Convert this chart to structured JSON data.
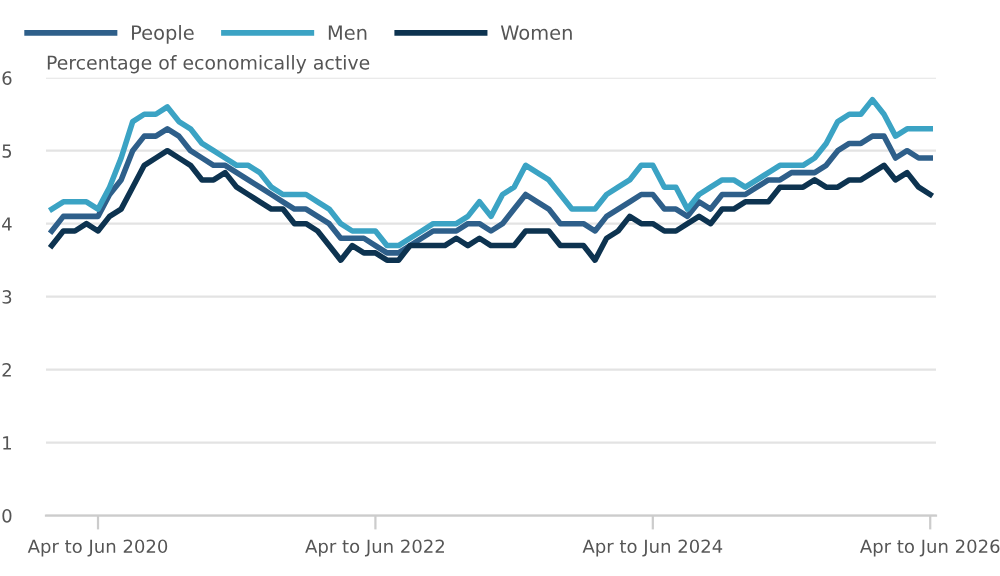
{
  "chart_data": {
    "type": "line",
    "ylabel": "Percentage of economically active",
    "categories": [
      null,
      null,
      null,
      null,
      "Apr to Jun 2020",
      null,
      null,
      null,
      null,
      null,
      null,
      null,
      null,
      null,
      null,
      null,
      null,
      null,
      null,
      null,
      null,
      null,
      null,
      null,
      null,
      null,
      null,
      null,
      "Apr to Jun 2022",
      null,
      null,
      null,
      null,
      null,
      null,
      null,
      null,
      null,
      null,
      null,
      null,
      null,
      null,
      null,
      null,
      null,
      null,
      null,
      null,
      null,
      null,
      null,
      "Apr to Jun 2024",
      null,
      null,
      null,
      null,
      null,
      null,
      null,
      null,
      null,
      null,
      null,
      null,
      null,
      null,
      null,
      null,
      null,
      null,
      null,
      null,
      null,
      null,
      null,
      "Apr to Jun 2026"
    ],
    "series": [
      {
        "name": "People",
        "color": "#2e5f8a",
        "values": [
          3.9,
          4.1,
          4.1,
          4.1,
          4.1,
          4.4,
          4.6,
          5.0,
          5.2,
          5.2,
          5.3,
          5.2,
          5.0,
          4.9,
          4.8,
          4.8,
          4.7,
          4.6,
          4.5,
          4.4,
          4.3,
          4.2,
          4.2,
          4.1,
          4.0,
          3.8,
          3.8,
          3.8,
          3.7,
          3.6,
          3.6,
          3.7,
          3.8,
          3.9,
          3.9,
          3.9,
          4.0,
          4.0,
          3.9,
          4.0,
          4.2,
          4.4,
          4.3,
          4.2,
          4.0,
          4.0,
          4.0,
          3.9,
          4.1,
          4.2,
          4.3,
          4.4,
          4.4,
          4.2,
          4.2,
          4.1,
          4.3,
          4.2,
          4.4,
          4.4,
          4.4,
          4.5,
          4.6,
          4.6,
          4.7,
          4.7,
          4.7,
          4.8,
          5.0,
          5.1,
          5.1,
          5.2,
          5.2,
          4.9,
          5.0,
          4.9,
          4.9
        ]
      },
      {
        "name": "Men",
        "color": "#3ba3c4",
        "values": [
          4.2,
          4.3,
          4.3,
          4.3,
          4.2,
          4.5,
          4.9,
          5.4,
          5.5,
          5.5,
          5.6,
          5.4,
          5.3,
          5.1,
          5.0,
          4.9,
          4.8,
          4.8,
          4.7,
          4.5,
          4.4,
          4.4,
          4.4,
          4.3,
          4.2,
          4.0,
          3.9,
          3.9,
          3.9,
          3.7,
          3.7,
          3.8,
          3.9,
          4.0,
          4.0,
          4.0,
          4.1,
          4.3,
          4.1,
          4.4,
          4.5,
          4.8,
          4.7,
          4.6,
          4.4,
          4.2,
          4.2,
          4.2,
          4.4,
          4.5,
          4.6,
          4.8,
          4.8,
          4.5,
          4.5,
          4.2,
          4.4,
          4.5,
          4.6,
          4.6,
          4.5,
          4.6,
          4.7,
          4.8,
          4.8,
          4.8,
          4.9,
          5.1,
          5.4,
          5.5,
          5.5,
          5.7,
          5.5,
          5.2,
          5.3,
          5.3,
          5.3
        ]
      },
      {
        "name": "Women",
        "color": "#0d3350",
        "values": [
          3.7,
          3.9,
          3.9,
          4.0,
          3.9,
          4.1,
          4.2,
          4.5,
          4.8,
          4.9,
          5.0,
          4.9,
          4.8,
          4.6,
          4.6,
          4.7,
          4.5,
          4.4,
          4.3,
          4.2,
          4.2,
          4.0,
          4.0,
          3.9,
          3.7,
          3.5,
          3.7,
          3.6,
          3.6,
          3.5,
          3.5,
          3.7,
          3.7,
          3.7,
          3.7,
          3.8,
          3.7,
          3.8,
          3.7,
          3.7,
          3.7,
          3.9,
          3.9,
          3.9,
          3.7,
          3.7,
          3.7,
          3.5,
          3.8,
          3.9,
          4.1,
          4.0,
          4.0,
          3.9,
          3.9,
          4.0,
          4.1,
          4.0,
          4.2,
          4.2,
          4.3,
          4.3,
          4.3,
          4.5,
          4.5,
          4.5,
          4.6,
          4.5,
          4.5,
          4.6,
          4.6,
          4.7,
          4.8,
          4.6,
          4.7,
          4.5,
          4.4
        ]
      }
    ],
    "ylim": [
      0,
      6
    ],
    "yticks": [
      0,
      1,
      2,
      3,
      4,
      5,
      6
    ],
    "grid": "y",
    "legend": "top left",
    "marker": "none",
    "line_style": "solid"
  }
}
